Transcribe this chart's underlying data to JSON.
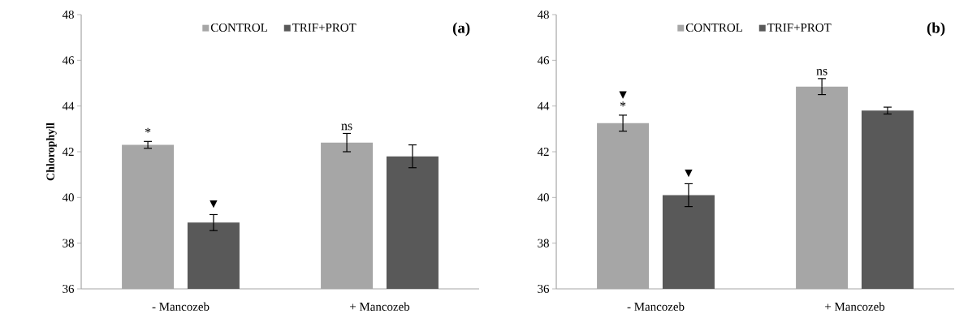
{
  "chart_data": [
    {
      "type": "bar",
      "title": "(a)",
      "ylabel": "Chlorophyll",
      "categories": [
        "- Mancozeb",
        "+ Mancozeb"
      ],
      "series": [
        {
          "name": "CONTROL",
          "color": "#a6a6a6",
          "values": [
            42.3,
            42.4
          ],
          "errors": [
            0.15,
            0.4
          ]
        },
        {
          "name": "TRIF+PROT",
          "color": "#595959",
          "values": [
            38.9,
            41.8
          ],
          "errors": [
            0.35,
            0.5
          ]
        }
      ],
      "ylim": [
        36,
        48
      ],
      "yticks": [
        36,
        38,
        40,
        42,
        44,
        46,
        48
      ],
      "legend": "top",
      "grid": false,
      "annotations": [
        "*",
        "▼",
        "ns"
      ]
    },
    {
      "type": "bar",
      "title": "(b)",
      "categories": [
        "- Mancozeb",
        "+ Mancozeb"
      ],
      "series": [
        {
          "name": "CONTROL",
          "color": "#a6a6a6",
          "values": [
            43.25,
            44.85
          ],
          "errors": [
            0.35,
            0.35
          ]
        },
        {
          "name": "TRIF+PROT",
          "color": "#595959",
          "values": [
            40.1,
            43.8
          ],
          "errors": [
            0.5,
            0.15
          ]
        }
      ],
      "ylim": [
        36,
        48
      ],
      "yticks": [
        36,
        38,
        40,
        42,
        44,
        46,
        48
      ],
      "legend": "top",
      "grid": false,
      "annotations": [
        "▼",
        "*",
        "▼",
        "ns"
      ]
    }
  ]
}
